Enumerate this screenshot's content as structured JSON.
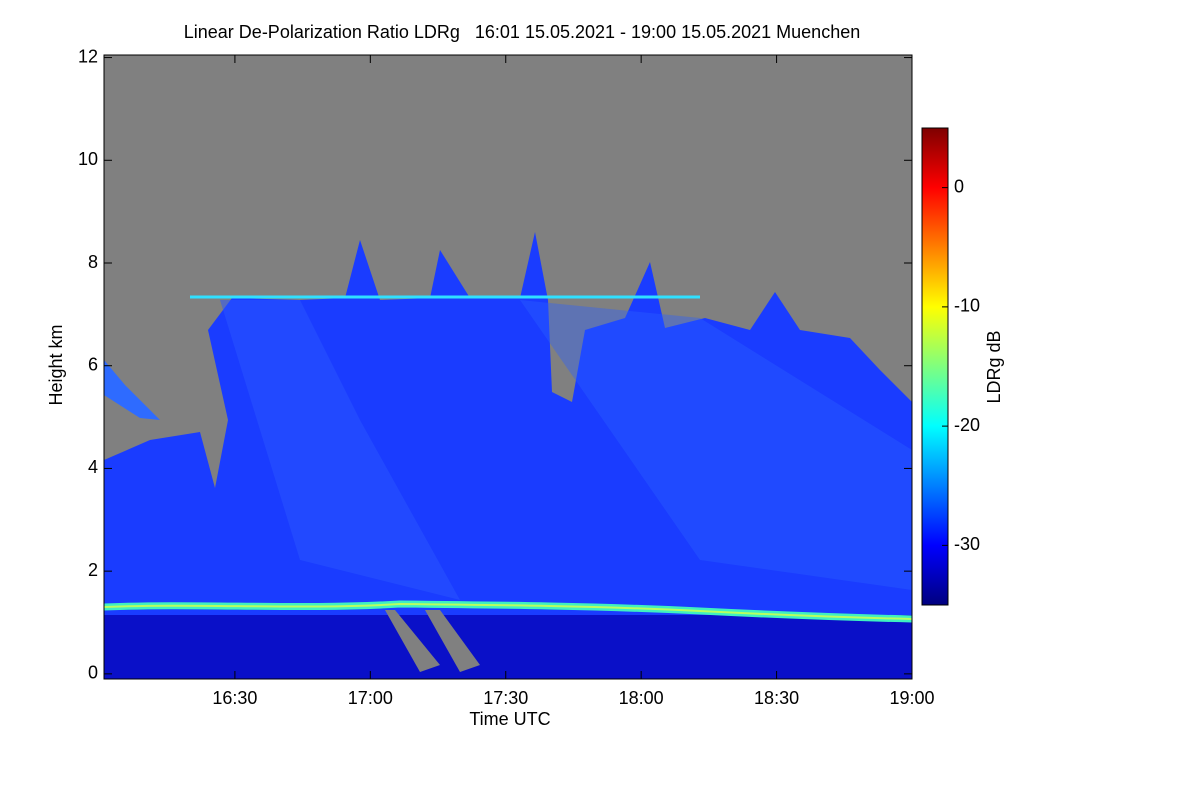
{
  "chart_data": {
    "type": "heatmap",
    "title": "Linear De-Polarization Ratio LDRg   16:01 15.05.2021 - 19:00 15.05.2021 Muenchen",
    "x_label": "Time UTC",
    "y_label": "Height km",
    "colorbar_label": "LDRg dB",
    "xlim": [
      961,
      1140
    ],
    "xticks": [
      {
        "value": 990,
        "label": "16:30"
      },
      {
        "value": 1020,
        "label": "17:00"
      },
      {
        "value": 1050,
        "label": "17:30"
      },
      {
        "value": 1080,
        "label": "18:00"
      },
      {
        "value": 1110,
        "label": "18:30"
      },
      {
        "value": 1140,
        "label": "19:00"
      }
    ],
    "ylim": [
      -0.1,
      12.05
    ],
    "yticks": [
      0,
      2,
      4,
      6,
      8,
      10,
      12
    ],
    "clim": [
      -35,
      5
    ],
    "cticks": [
      -30,
      -20,
      -10,
      0
    ],
    "colormap": [
      "#00007f",
      "#0000ff",
      "#007fff",
      "#00ffff",
      "#7fff7f",
      "#ffff00",
      "#ff7f00",
      "#ff0000",
      "#7f0000"
    ],
    "missing_color": "#808080"
  }
}
